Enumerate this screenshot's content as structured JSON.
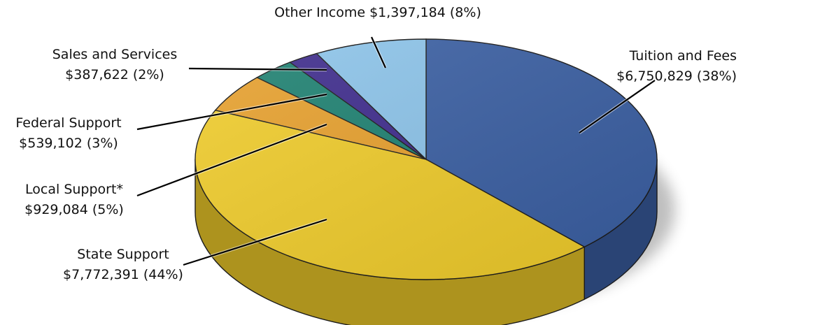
{
  "chart_data": {
    "type": "pie",
    "style": "3d",
    "slices": [
      {
        "name": "Tuition and Fees",
        "amount": 6750829,
        "percent": 38,
        "amount_label": "$6,750,829",
        "percent_label": "(38%)",
        "color": "#3a5fa3"
      },
      {
        "name": "State Support",
        "amount": 7772391,
        "percent": 44,
        "amount_label": "$7,772,391",
        "percent_label": "(44%)",
        "color": "#f0cc2a"
      },
      {
        "name": "Local Support*",
        "amount": 929084,
        "percent": 5,
        "amount_label": "$929,084",
        "percent_label": "(5%)",
        "color": "#e7a02c"
      },
      {
        "name": "Federal Support",
        "amount": 539102,
        "percent": 3,
        "amount_label": "$539,102",
        "percent_label": "(3%)",
        "color": "#1c8070"
      },
      {
        "name": "Sales and Services",
        "amount": 387622,
        "percent": 2,
        "amount_label": "$387,622",
        "percent_label": "(2%)",
        "color": "#3d2a8c"
      },
      {
        "name": "Other Income",
        "amount": 1397184,
        "percent": 8,
        "amount_label": "$1,397,184",
        "percent_label": "(8%)",
        "color": "#8cc4ea"
      }
    ]
  }
}
